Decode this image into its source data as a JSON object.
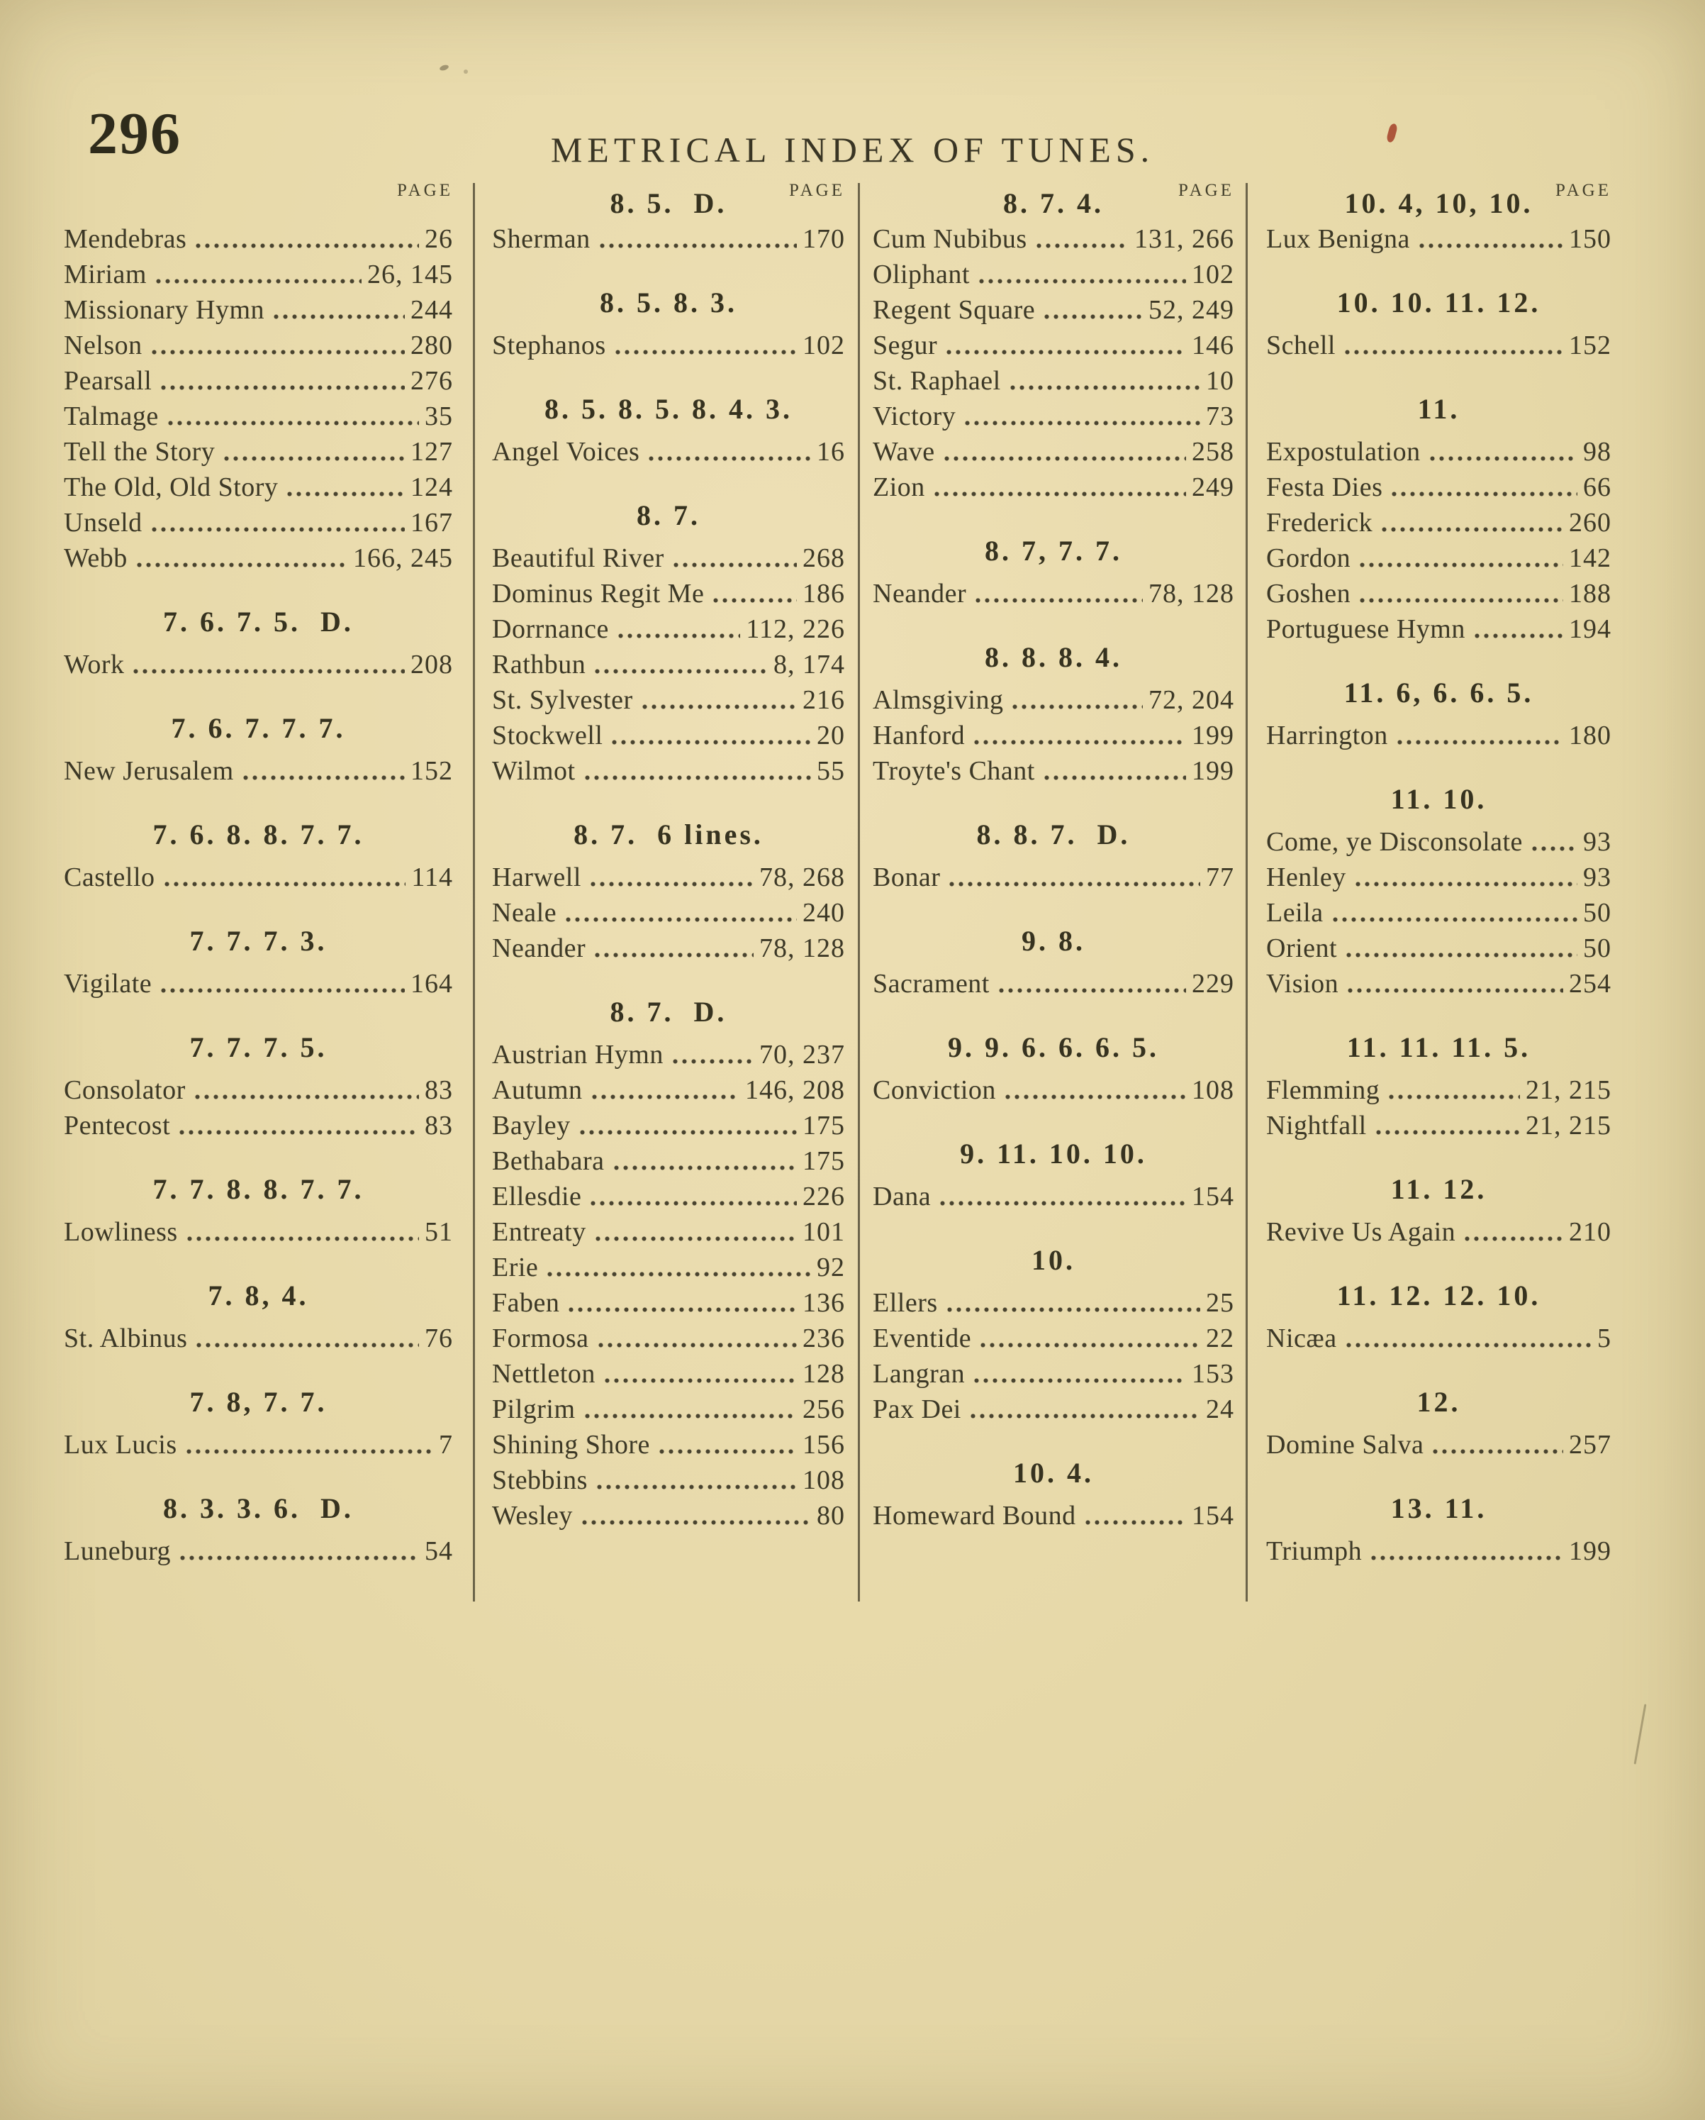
{
  "page": {
    "folio": "296",
    "title": "METRICAL INDEX OF TUNES."
  },
  "index": {
    "page_column_label": "PAGE",
    "columns": [
      {
        "sections": [
          {
            "heading": "",
            "show_page_label": true,
            "entries": [
              {
                "name": "Mendebras",
                "pages": "26"
              },
              {
                "name": "Miriam",
                "pages": "26, 145"
              },
              {
                "name": "Missionary Hymn",
                "pages": "244"
              },
              {
                "name": "Nelson",
                "pages": "280"
              },
              {
                "name": "Pearsall",
                "pages": "276"
              },
              {
                "name": "Talmage",
                "pages": "35"
              },
              {
                "name": "Tell the Story",
                "pages": "127"
              },
              {
                "name": "The Old, Old Story",
                "pages": "124"
              },
              {
                "name": "Unseld",
                "pages": "167"
              },
              {
                "name": "Webb",
                "pages": "166, 245"
              }
            ]
          },
          {
            "heading": "7. 6. 7. 5.  D.",
            "show_page_label": false,
            "entries": [
              {
                "name": "Work",
                "pages": "208"
              }
            ]
          },
          {
            "heading": "7. 6. 7. 7. 7.",
            "show_page_label": false,
            "entries": [
              {
                "name": "New Jerusalem",
                "pages": "152"
              }
            ]
          },
          {
            "heading": "7. 6. 8. 8. 7. 7.",
            "show_page_label": false,
            "entries": [
              {
                "name": "Castello",
                "pages": "114"
              }
            ]
          },
          {
            "heading": "7. 7. 7. 3.",
            "show_page_label": false,
            "entries": [
              {
                "name": "Vigilate",
                "pages": "164"
              }
            ]
          },
          {
            "heading": "7. 7. 7. 5.",
            "show_page_label": false,
            "entries": [
              {
                "name": "Consolator",
                "pages": "83"
              },
              {
                "name": "Pentecost",
                "pages": "83"
              }
            ]
          },
          {
            "heading": "7. 7. 8. 8. 7. 7.",
            "show_page_label": false,
            "entries": [
              {
                "name": "Lowliness",
                "pages": "51"
              }
            ]
          },
          {
            "heading": "7. 8, 4.",
            "show_page_label": false,
            "entries": [
              {
                "name": "St. Albinus",
                "pages": "76"
              }
            ]
          },
          {
            "heading": "7. 8, 7. 7.",
            "show_page_label": false,
            "entries": [
              {
                "name": "Lux Lucis",
                "pages": "7"
              }
            ]
          },
          {
            "heading": "8. 3. 3. 6.  D.",
            "show_page_label": false,
            "entries": [
              {
                "name": "Luneburg",
                "pages": "54"
              }
            ]
          }
        ]
      },
      {
        "sections": [
          {
            "heading": "8. 5.  D.",
            "show_page_label": true,
            "entries": [
              {
                "name": "Sherman",
                "pages": "170"
              }
            ]
          },
          {
            "heading": "8. 5. 8. 3.",
            "show_page_label": false,
            "entries": [
              {
                "name": "Stephanos",
                "pages": "102"
              }
            ]
          },
          {
            "heading": "8. 5. 8. 5. 8. 4. 3.",
            "show_page_label": false,
            "entries": [
              {
                "name": "Angel Voices",
                "pages": "16"
              }
            ]
          },
          {
            "heading": "8. 7.",
            "show_page_label": false,
            "entries": [
              {
                "name": "Beautiful River",
                "pages": "268"
              },
              {
                "name": "Dominus Regit Me",
                "pages": "186"
              },
              {
                "name": "Dorrnance",
                "pages": "112, 226"
              },
              {
                "name": "Rathbun",
                "pages": "8, 174"
              },
              {
                "name": "St. Sylvester",
                "pages": "216"
              },
              {
                "name": "Stockwell",
                "pages": "20"
              },
              {
                "name": "Wilmot",
                "pages": "55"
              }
            ]
          },
          {
            "heading": "8. 7.  6 lines.",
            "show_page_label": false,
            "entries": [
              {
                "name": "Harwell",
                "pages": "78, 268"
              },
              {
                "name": "Neale",
                "pages": "240"
              },
              {
                "name": "Neander",
                "pages": "78, 128"
              }
            ]
          },
          {
            "heading": "8. 7.  D.",
            "show_page_label": false,
            "entries": [
              {
                "name": "Austrian Hymn",
                "pages": "70, 237"
              },
              {
                "name": "Autumn",
                "pages": "146, 208"
              },
              {
                "name": "Bayley",
                "pages": "175"
              },
              {
                "name": "Bethabara",
                "pages": "175"
              },
              {
                "name": "Ellesdie",
                "pages": "226"
              },
              {
                "name": "Entreaty",
                "pages": "101"
              },
              {
                "name": "Erie",
                "pages": "92"
              },
              {
                "name": "Faben",
                "pages": "136"
              },
              {
                "name": "Formosa",
                "pages": "236"
              },
              {
                "name": "Nettleton",
                "pages": "128"
              },
              {
                "name": "Pilgrim",
                "pages": "256"
              },
              {
                "name": "Shining Shore",
                "pages": "156"
              },
              {
                "name": "Stebbins",
                "pages": "108"
              },
              {
                "name": "Wesley",
                "pages": "80"
              }
            ]
          }
        ]
      },
      {
        "sections": [
          {
            "heading": "8. 7. 4.",
            "show_page_label": true,
            "entries": [
              {
                "name": "Cum Nubibus",
                "pages": "131, 266"
              },
              {
                "name": "Oliphant",
                "pages": "102"
              },
              {
                "name": "Regent Square",
                "pages": "52, 249"
              },
              {
                "name": "Segur",
                "pages": "146"
              },
              {
                "name": "St. Raphael",
                "pages": "10"
              },
              {
                "name": "Victory",
                "pages": "73"
              },
              {
                "name": "Wave",
                "pages": "258"
              },
              {
                "name": "Zion",
                "pages": "249"
              }
            ]
          },
          {
            "heading": "8. 7, 7. 7.",
            "show_page_label": false,
            "entries": [
              {
                "name": "Neander",
                "pages": "78, 128"
              }
            ]
          },
          {
            "heading": "8. 8. 8. 4.",
            "show_page_label": false,
            "entries": [
              {
                "name": "Almsgiving",
                "pages": "72, 204"
              },
              {
                "name": "Hanford",
                "pages": "199"
              },
              {
                "name": "Troyte's Chant",
                "pages": "199"
              }
            ]
          },
          {
            "heading": "8. 8. 7.  D.",
            "show_page_label": false,
            "entries": [
              {
                "name": "Bonar",
                "pages": "77"
              }
            ]
          },
          {
            "heading": "9. 8.",
            "show_page_label": false,
            "entries": [
              {
                "name": "Sacrament",
                "pages": "229"
              }
            ]
          },
          {
            "heading": "9. 9. 6. 6. 6. 5.",
            "show_page_label": false,
            "entries": [
              {
                "name": "Conviction",
                "pages": "108"
              }
            ]
          },
          {
            "heading": "9. 11. 10. 10.",
            "show_page_label": false,
            "entries": [
              {
                "name": "Dana",
                "pages": "154"
              }
            ]
          },
          {
            "heading": "10.",
            "show_page_label": false,
            "entries": [
              {
                "name": "Ellers",
                "pages": "25"
              },
              {
                "name": "Eventide",
                "pages": "22"
              },
              {
                "name": "Langran",
                "pages": "153"
              },
              {
                "name": "Pax Dei",
                "pages": "24"
              }
            ]
          },
          {
            "heading": "10. 4.",
            "show_page_label": false,
            "entries": [
              {
                "name": "Homeward Bound",
                "pages": "154"
              }
            ]
          }
        ]
      },
      {
        "sections": [
          {
            "heading": "10. 4, 10, 10.",
            "show_page_label": true,
            "entries": [
              {
                "name": "Lux Benigna",
                "pages": "150"
              }
            ]
          },
          {
            "heading": "10. 10. 11. 12.",
            "show_page_label": false,
            "entries": [
              {
                "name": "Schell",
                "pages": "152"
              }
            ]
          },
          {
            "heading": "11.",
            "show_page_label": false,
            "entries": [
              {
                "name": "Expostulation",
                "pages": "98"
              },
              {
                "name": "Festa Dies",
                "pages": "66"
              },
              {
                "name": "Frederick",
                "pages": "260"
              },
              {
                "name": "Gordon",
                "pages": "142"
              },
              {
                "name": "Goshen",
                "pages": "188"
              },
              {
                "name": "Portuguese Hymn",
                "pages": "194"
              }
            ]
          },
          {
            "heading": "11. 6, 6. 6. 5.",
            "show_page_label": false,
            "entries": [
              {
                "name": "Harrington",
                "pages": "180"
              }
            ]
          },
          {
            "heading": "11. 10.",
            "show_page_label": false,
            "entries": [
              {
                "name": "Come, ye Disconsolate",
                "pages": "93"
              },
              {
                "name": "Henley",
                "pages": "93"
              },
              {
                "name": "Leila",
                "pages": "50"
              },
              {
                "name": "Orient",
                "pages": "50"
              },
              {
                "name": "Vision",
                "pages": "254"
              }
            ]
          },
          {
            "heading": "11. 11. 11. 5.",
            "show_page_label": false,
            "entries": [
              {
                "name": "Flemming",
                "pages": "21, 215"
              },
              {
                "name": "Nightfall",
                "pages": "21, 215"
              }
            ]
          },
          {
            "heading": "11. 12.",
            "show_page_label": false,
            "entries": [
              {
                "name": "Revive Us Again",
                "pages": "210"
              }
            ]
          },
          {
            "heading": "11. 12. 12. 10.",
            "show_page_label": false,
            "entries": [
              {
                "name": "Nicæa",
                "pages": "5"
              }
            ]
          },
          {
            "heading": "12.",
            "show_page_label": false,
            "entries": [
              {
                "name": "Domine Salva",
                "pages": "257"
              }
            ]
          },
          {
            "heading": "13. 11.",
            "show_page_label": false,
            "entries": [
              {
                "name": "Triumph",
                "pages": "199"
              }
            ]
          }
        ]
      }
    ]
  }
}
